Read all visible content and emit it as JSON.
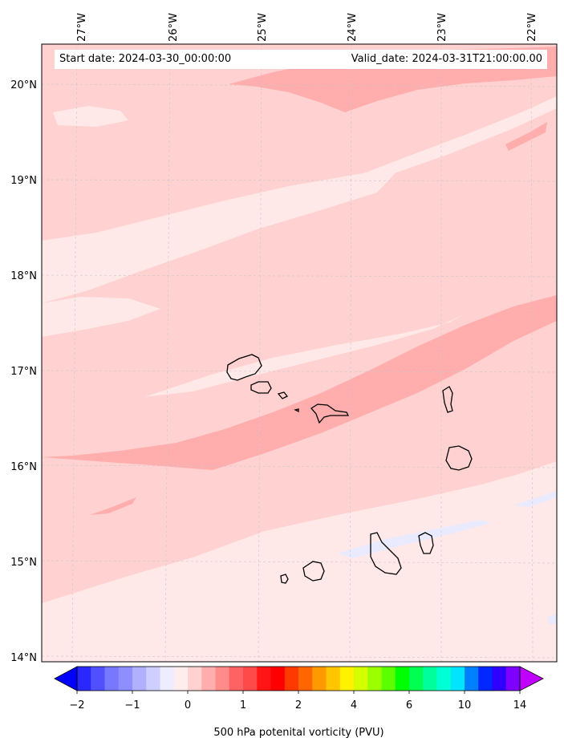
{
  "map": {
    "projection_lines": "graticule",
    "lon_labels": [
      "27°W",
      "26°W",
      "25°W",
      "24°W",
      "23°W",
      "22°W"
    ],
    "lat_labels": [
      "20°N",
      "19°N",
      "18°N",
      "17°N",
      "16°N",
      "15°N",
      "14°N"
    ],
    "start_date": "Start date: 2024-03-30_00:00:00",
    "valid_date": "Valid_date: 2024-03-31T21:00:00.00",
    "fill_colors": {
      "background": "#ffd1d1",
      "lighter": "#ffe8e8",
      "darker": "#ffadad",
      "pale_blue": "#eaeaff",
      "coast": "#000000"
    }
  },
  "colorbar": {
    "label": "500 hPa potenital vorticity (PVU)",
    "tick_labels": [
      "−2",
      "−1",
      "0",
      "1",
      "2",
      "4",
      "6",
      "10",
      "14"
    ],
    "colors": [
      "#0000ff",
      "#2828ff",
      "#5050ff",
      "#7878ff",
      "#8e8eff",
      "#b0b0ff",
      "#cfcfff",
      "#ededff",
      "#ffeded",
      "#ffd1d1",
      "#ffadad",
      "#ff8b8b",
      "#ff6262",
      "#ff4a4a",
      "#ff1515",
      "#ff0000",
      "#ff3a00",
      "#ff6600",
      "#ff9900",
      "#ffc600",
      "#fff200",
      "#d4ff00",
      "#9cff00",
      "#5cff00",
      "#00ff00",
      "#00ff50",
      "#00ff9c",
      "#00ffd4",
      "#00e4ff",
      "#0080ff",
      "#0028ff",
      "#3000ff",
      "#8000ff",
      "#c000ff"
    ]
  }
}
